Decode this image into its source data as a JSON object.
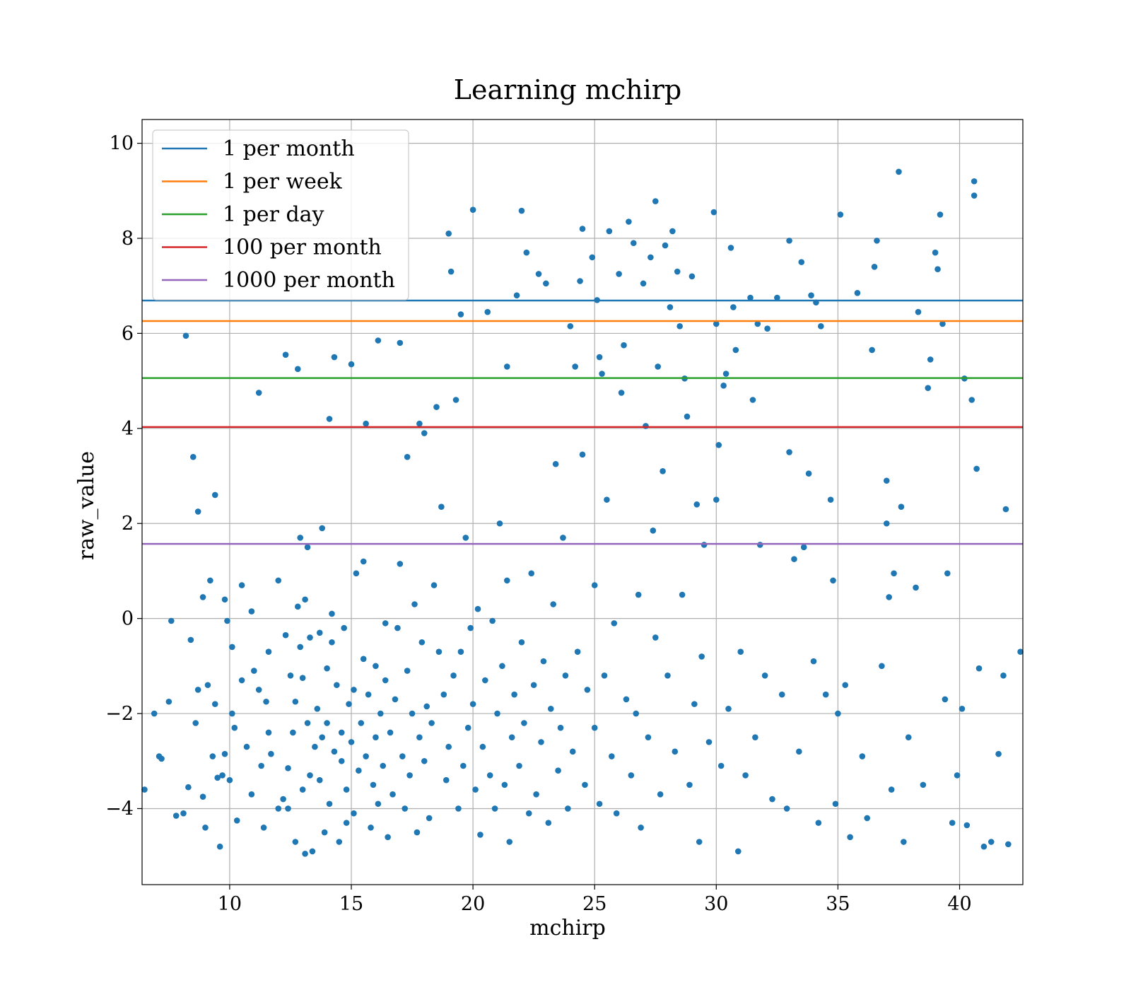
{
  "chart_data": {
    "type": "scatter",
    "title": "Learning mchirp",
    "xlabel": "mchirp",
    "ylabel": "raw_value",
    "xlim": [
      6.4,
      42.6
    ],
    "ylim": [
      -5.6,
      10.5
    ],
    "xticks": [
      10,
      15,
      20,
      25,
      30,
      35,
      40
    ],
    "yticks": [
      -4,
      -2,
      0,
      2,
      4,
      6,
      8,
      10
    ],
    "ytick_labels": [
      "−4",
      "−2",
      "0",
      "2",
      "4",
      "6",
      "8",
      "10"
    ],
    "grid": true,
    "legend_position": "top-left",
    "colors": {
      "points": "#1f77b4",
      "grid": "#b0b0b0"
    },
    "reference_lines": [
      {
        "name": "1 per month",
        "y": 6.69,
        "color": "#1f77b4"
      },
      {
        "name": "1 per week",
        "y": 6.26,
        "color": "#ff7f0e"
      },
      {
        "name": "1 per day",
        "y": 5.06,
        "color": "#2ca02c"
      },
      {
        "name": "100 per month",
        "y": 4.03,
        "color": "#d62728"
      },
      {
        "name": "1000 per month",
        "y": 1.57,
        "color": "#9467bd"
      }
    ],
    "points": [
      [
        6.5,
        -3.6
      ],
      [
        6.9,
        -2.0
      ],
      [
        7.1,
        -2.9
      ],
      [
        7.2,
        -2.95
      ],
      [
        7.5,
        -1.75
      ],
      [
        7.6,
        -0.05
      ],
      [
        7.8,
        -4.15
      ],
      [
        8.1,
        -4.1
      ],
      [
        8.2,
        5.95
      ],
      [
        8.3,
        -3.55
      ],
      [
        8.4,
        -0.45
      ],
      [
        8.5,
        3.4
      ],
      [
        8.6,
        -2.2
      ],
      [
        8.7,
        2.25
      ],
      [
        8.7,
        -1.5
      ],
      [
        8.9,
        -3.75
      ],
      [
        8.9,
        0.45
      ],
      [
        9.0,
        -4.4
      ],
      [
        9.1,
        -1.4
      ],
      [
        9.2,
        0.8
      ],
      [
        9.3,
        -2.9
      ],
      [
        9.4,
        2.6
      ],
      [
        9.4,
        -1.8
      ],
      [
        9.5,
        -3.35
      ],
      [
        9.6,
        -4.8
      ],
      [
        9.7,
        -3.3
      ],
      [
        9.8,
        0.4
      ],
      [
        9.8,
        -2.85
      ],
      [
        9.9,
        -0.05
      ],
      [
        10.0,
        -3.4
      ],
      [
        10.1,
        -0.6
      ],
      [
        10.1,
        -2.0
      ],
      [
        10.2,
        -2.3
      ],
      [
        10.3,
        -4.25
      ],
      [
        10.5,
        0.7
      ],
      [
        10.5,
        -1.3
      ],
      [
        10.7,
        -2.7
      ],
      [
        10.9,
        0.15
      ],
      [
        10.9,
        -3.7
      ],
      [
        11.0,
        -1.1
      ],
      [
        11.2,
        4.75
      ],
      [
        11.2,
        -1.5
      ],
      [
        11.3,
        -3.1
      ],
      [
        11.4,
        -4.4
      ],
      [
        11.5,
        -1.75
      ],
      [
        11.6,
        -0.7
      ],
      [
        11.6,
        -2.4
      ],
      [
        11.7,
        -2.85
      ],
      [
        12.0,
        -4.0
      ],
      [
        12.0,
        0.8
      ],
      [
        12.2,
        -3.8
      ],
      [
        12.3,
        5.55
      ],
      [
        12.3,
        -0.35
      ],
      [
        12.4,
        -3.15
      ],
      [
        12.4,
        -4.0
      ],
      [
        12.5,
        -1.2
      ],
      [
        12.6,
        -2.4
      ],
      [
        12.7,
        -4.7
      ],
      [
        12.7,
        -1.75
      ],
      [
        12.8,
        5.25
      ],
      [
        12.8,
        0.25
      ],
      [
        12.9,
        1.7
      ],
      [
        12.9,
        -0.6
      ],
      [
        13.0,
        -3.6
      ],
      [
        13.0,
        -1.25
      ],
      [
        13.1,
        0.4
      ],
      [
        13.1,
        -4.95
      ],
      [
        13.2,
        1.5
      ],
      [
        13.2,
        -2.2
      ],
      [
        13.3,
        -0.4
      ],
      [
        13.3,
        -3.3
      ],
      [
        13.4,
        -4.9
      ],
      [
        13.5,
        -2.7
      ],
      [
        13.6,
        -1.9
      ],
      [
        13.7,
        -0.3
      ],
      [
        13.7,
        -3.4
      ],
      [
        13.8,
        1.9
      ],
      [
        13.8,
        -2.5
      ],
      [
        13.9,
        -4.5
      ],
      [
        14.0,
        -2.2
      ],
      [
        14.0,
        -1.05
      ],
      [
        14.1,
        4.2
      ],
      [
        14.1,
        -3.9
      ],
      [
        14.2,
        -0.5
      ],
      [
        14.2,
        0.1
      ],
      [
        14.3,
        5.5
      ],
      [
        14.3,
        -2.8
      ],
      [
        14.4,
        -1.4
      ],
      [
        14.5,
        -4.7
      ],
      [
        14.6,
        -3.0
      ],
      [
        14.6,
        -2.4
      ],
      [
        14.7,
        -0.2
      ],
      [
        14.8,
        -4.3
      ],
      [
        14.8,
        -3.6
      ],
      [
        14.9,
        -1.8
      ],
      [
        15.0,
        5.35
      ],
      [
        15.0,
        -2.6
      ],
      [
        15.1,
        -4.1
      ],
      [
        15.1,
        -1.5
      ],
      [
        15.2,
        0.95
      ],
      [
        15.3,
        -3.2
      ],
      [
        15.4,
        -2.2
      ],
      [
        15.5,
        1.2
      ],
      [
        15.5,
        -0.85
      ],
      [
        15.6,
        4.1
      ],
      [
        15.6,
        -2.9
      ],
      [
        15.7,
        -1.6
      ],
      [
        15.8,
        -4.4
      ],
      [
        15.9,
        -3.5
      ],
      [
        16.0,
        -2.5
      ],
      [
        16.0,
        -1.0
      ],
      [
        16.1,
        5.85
      ],
      [
        16.1,
        -3.9
      ],
      [
        16.2,
        -2.0
      ],
      [
        16.3,
        -3.1
      ],
      [
        16.4,
        -0.1
      ],
      [
        16.4,
        -1.3
      ],
      [
        16.5,
        -4.6
      ],
      [
        16.6,
        -2.4
      ],
      [
        16.7,
        -3.7
      ],
      [
        16.8,
        -1.7
      ],
      [
        16.9,
        -0.2
      ],
      [
        17.0,
        5.8
      ],
      [
        17.0,
        1.15
      ],
      [
        17.1,
        -2.9
      ],
      [
        17.2,
        -4.0
      ],
      [
        17.3,
        3.4
      ],
      [
        17.3,
        -1.1
      ],
      [
        17.4,
        -3.3
      ],
      [
        17.5,
        -2.0
      ],
      [
        17.6,
        0.3
      ],
      [
        17.7,
        -4.5
      ],
      [
        17.8,
        4.1
      ],
      [
        17.8,
        -2.5
      ],
      [
        17.9,
        -0.5
      ],
      [
        18.0,
        3.9
      ],
      [
        18.0,
        -3.0
      ],
      [
        18.1,
        -1.85
      ],
      [
        18.2,
        -4.2
      ],
      [
        18.3,
        -2.2
      ],
      [
        18.4,
        0.7
      ],
      [
        18.5,
        4.45
      ],
      [
        18.6,
        -0.7
      ],
      [
        18.7,
        2.35
      ],
      [
        18.8,
        -1.6
      ],
      [
        18.9,
        -3.4
      ],
      [
        19.0,
        8.1
      ],
      [
        19.0,
        -2.7
      ],
      [
        19.1,
        7.3
      ],
      [
        19.2,
        -1.2
      ],
      [
        19.3,
        4.6
      ],
      [
        19.4,
        -4.0
      ],
      [
        19.5,
        6.4
      ],
      [
        19.5,
        -0.7
      ],
      [
        19.6,
        -3.1
      ],
      [
        19.7,
        1.7
      ],
      [
        19.8,
        -2.3
      ],
      [
        19.9,
        -0.2
      ],
      [
        20.0,
        8.6
      ],
      [
        20.0,
        -1.8
      ],
      [
        20.1,
        -3.6
      ],
      [
        20.2,
        0.2
      ],
      [
        20.3,
        -4.55
      ],
      [
        20.4,
        -2.7
      ],
      [
        20.5,
        -1.3
      ],
      [
        20.6,
        6.45
      ],
      [
        20.7,
        -3.3
      ],
      [
        20.8,
        -0.05
      ],
      [
        20.9,
        -4.0
      ],
      [
        21.0,
        -2.0
      ],
      [
        21.1,
        2.0
      ],
      [
        21.2,
        -1.0
      ],
      [
        21.3,
        -3.5
      ],
      [
        21.4,
        5.3
      ],
      [
        21.4,
        0.8
      ],
      [
        21.5,
        -4.7
      ],
      [
        21.6,
        -2.5
      ],
      [
        21.7,
        -1.6
      ],
      [
        21.8,
        6.8
      ],
      [
        21.9,
        -3.1
      ],
      [
        22.0,
        8.58
      ],
      [
        22.0,
        -0.5
      ],
      [
        22.1,
        -2.2
      ],
      [
        22.2,
        7.7
      ],
      [
        22.3,
        -4.1
      ],
      [
        22.4,
        0.95
      ],
      [
        22.5,
        -1.4
      ],
      [
        22.6,
        -3.7
      ],
      [
        22.7,
        7.25
      ],
      [
        22.8,
        -2.6
      ],
      [
        22.9,
        -0.9
      ],
      [
        23.0,
        7.05
      ],
      [
        23.1,
        -4.3
      ],
      [
        23.2,
        -1.9
      ],
      [
        23.3,
        0.3
      ],
      [
        23.4,
        3.25
      ],
      [
        23.5,
        -3.2
      ],
      [
        23.6,
        -2.3
      ],
      [
        23.7,
        1.7
      ],
      [
        23.8,
        -1.2
      ],
      [
        23.9,
        -4.0
      ],
      [
        24.0,
        6.15
      ],
      [
        24.1,
        -2.8
      ],
      [
        24.2,
        5.3
      ],
      [
        24.3,
        -0.7
      ],
      [
        24.4,
        7.1
      ],
      [
        24.5,
        3.45
      ],
      [
        24.5,
        8.2
      ],
      [
        24.6,
        -3.5
      ],
      [
        24.7,
        -1.5
      ],
      [
        24.9,
        7.6
      ],
      [
        25.0,
        0.7
      ],
      [
        25.0,
        -2.3
      ],
      [
        25.1,
        6.7
      ],
      [
        25.2,
        5.5
      ],
      [
        25.2,
        -3.9
      ],
      [
        25.3,
        5.15
      ],
      [
        25.4,
        -1.2
      ],
      [
        25.5,
        2.5
      ],
      [
        25.6,
        8.15
      ],
      [
        25.7,
        -2.9
      ],
      [
        25.8,
        -0.1
      ],
      [
        25.9,
        -4.1
      ],
      [
        26.0,
        7.25
      ],
      [
        26.1,
        4.75
      ],
      [
        26.2,
        5.75
      ],
      [
        26.3,
        -1.7
      ],
      [
        26.4,
        8.35
      ],
      [
        26.5,
        -3.3
      ],
      [
        26.6,
        7.9
      ],
      [
        26.7,
        -2.0
      ],
      [
        26.8,
        0.5
      ],
      [
        26.9,
        -4.4
      ],
      [
        27.0,
        7.05
      ],
      [
        27.1,
        4.05
      ],
      [
        27.2,
        -2.5
      ],
      [
        27.3,
        7.6
      ],
      [
        27.4,
        1.85
      ],
      [
        27.5,
        8.78
      ],
      [
        27.5,
        -0.4
      ],
      [
        27.6,
        5.3
      ],
      [
        27.7,
        -3.7
      ],
      [
        27.8,
        3.1
      ],
      [
        27.9,
        7.85
      ],
      [
        28.0,
        -1.2
      ],
      [
        28.1,
        6.55
      ],
      [
        28.2,
        8.15
      ],
      [
        28.3,
        -2.8
      ],
      [
        28.4,
        7.3
      ],
      [
        28.5,
        6.15
      ],
      [
        28.6,
        0.5
      ],
      [
        28.7,
        5.05
      ],
      [
        28.8,
        4.25
      ],
      [
        28.9,
        -3.5
      ],
      [
        29.0,
        7.2
      ],
      [
        29.1,
        -1.8
      ],
      [
        29.2,
        2.4
      ],
      [
        29.3,
        -4.7
      ],
      [
        29.4,
        -0.8
      ],
      [
        29.5,
        1.55
      ],
      [
        29.7,
        -2.6
      ],
      [
        29.9,
        8.55
      ],
      [
        30.0,
        6.2
      ],
      [
        30.0,
        2.5
      ],
      [
        30.1,
        3.65
      ],
      [
        30.2,
        -3.1
      ],
      [
        30.3,
        4.9
      ],
      [
        30.4,
        5.15
      ],
      [
        30.5,
        -1.9
      ],
      [
        30.6,
        7.8
      ],
      [
        30.7,
        6.55
      ],
      [
        30.8,
        5.65
      ],
      [
        30.9,
        -4.9
      ],
      [
        31.0,
        -0.7
      ],
      [
        31.2,
        -3.3
      ],
      [
        31.4,
        6.75
      ],
      [
        31.5,
        4.6
      ],
      [
        31.6,
        -2.5
      ],
      [
        31.7,
        6.2
      ],
      [
        31.8,
        1.55
      ],
      [
        32.0,
        -1.2
      ],
      [
        32.1,
        6.1
      ],
      [
        32.3,
        -3.8
      ],
      [
        32.5,
        6.75
      ],
      [
        32.7,
        -1.6
      ],
      [
        32.9,
        -4.0
      ],
      [
        33.0,
        7.95
      ],
      [
        33.0,
        3.5
      ],
      [
        33.2,
        1.25
      ],
      [
        33.4,
        -2.8
      ],
      [
        33.5,
        7.5
      ],
      [
        33.6,
        1.5
      ],
      [
        33.8,
        3.05
      ],
      [
        33.9,
        6.8
      ],
      [
        34.0,
        -0.9
      ],
      [
        34.1,
        6.65
      ],
      [
        34.2,
        -4.3
      ],
      [
        34.3,
        6.15
      ],
      [
        34.5,
        -1.6
      ],
      [
        34.7,
        2.5
      ],
      [
        34.8,
        0.8
      ],
      [
        34.9,
        -3.9
      ],
      [
        35.0,
        -2.0
      ],
      [
        35.1,
        8.5
      ],
      [
        35.3,
        -1.4
      ],
      [
        35.5,
        -4.6
      ],
      [
        35.8,
        6.85
      ],
      [
        36.0,
        -2.9
      ],
      [
        36.2,
        -4.2
      ],
      [
        36.4,
        5.65
      ],
      [
        36.5,
        7.4
      ],
      [
        36.6,
        7.95
      ],
      [
        36.8,
        -1.0
      ],
      [
        37.0,
        2.9
      ],
      [
        37.0,
        2.0
      ],
      [
        37.1,
        0.45
      ],
      [
        37.2,
        -3.6
      ],
      [
        37.3,
        0.95
      ],
      [
        37.5,
        9.4
      ],
      [
        37.6,
        2.35
      ],
      [
        37.7,
        -4.7
      ],
      [
        37.9,
        -2.5
      ],
      [
        38.2,
        0.65
      ],
      [
        38.3,
        6.45
      ],
      [
        38.5,
        -3.5
      ],
      [
        38.7,
        4.85
      ],
      [
        38.8,
        5.45
      ],
      [
        39.0,
        7.7
      ],
      [
        39.1,
        7.35
      ],
      [
        39.2,
        8.5
      ],
      [
        39.3,
        6.2
      ],
      [
        39.4,
        -1.7
      ],
      [
        39.5,
        0.95
      ],
      [
        39.7,
        -4.3
      ],
      [
        39.9,
        -3.3
      ],
      [
        40.1,
        -1.9
      ],
      [
        40.2,
        5.05
      ],
      [
        40.3,
        -4.35
      ],
      [
        40.5,
        4.6
      ],
      [
        40.6,
        8.9
      ],
      [
        40.6,
        9.2
      ],
      [
        40.7,
        3.15
      ],
      [
        40.8,
        -1.05
      ],
      [
        41.0,
        -4.8
      ],
      [
        41.3,
        -4.7
      ],
      [
        41.6,
        -2.85
      ],
      [
        41.8,
        -1.2
      ],
      [
        41.9,
        2.3
      ],
      [
        42.0,
        -4.75
      ],
      [
        42.5,
        -0.7
      ]
    ]
  }
}
